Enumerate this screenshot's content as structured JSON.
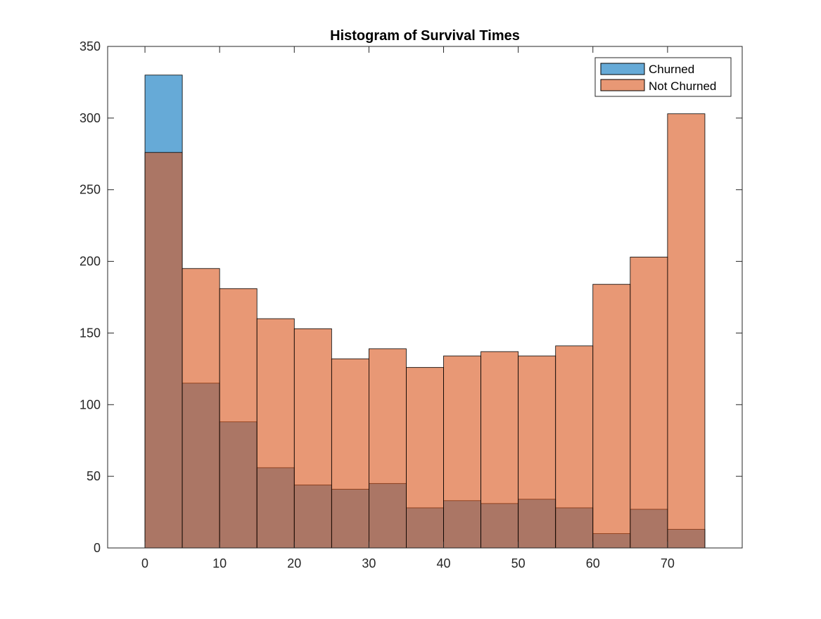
{
  "chart_data": {
    "type": "bar",
    "title": "Histogram of Survival Times",
    "xlabel": "",
    "ylabel": "",
    "xlim": [
      -5,
      80
    ],
    "ylim": [
      0,
      350
    ],
    "xticks": [
      0,
      10,
      20,
      30,
      40,
      50,
      60,
      70
    ],
    "yticks": [
      0,
      50,
      100,
      150,
      200,
      250,
      300,
      350
    ],
    "bin_edges": [
      0,
      5,
      10,
      15,
      20,
      25,
      30,
      35,
      40,
      45,
      50,
      55,
      60,
      65,
      70,
      75
    ],
    "grid": false,
    "legend_position": "top-right",
    "series": [
      {
        "name": "Churned",
        "color": "#0072BD",
        "values": [
          330,
          115,
          88,
          56,
          44,
          41,
          45,
          28,
          33,
          31,
          34,
          28,
          10,
          27,
          13
        ]
      },
      {
        "name": "Not Churned",
        "color": "#D95319",
        "values": [
          276,
          195,
          181,
          160,
          153,
          132,
          139,
          126,
          134,
          137,
          134,
          141,
          184,
          203,
          303
        ]
      }
    ]
  }
}
